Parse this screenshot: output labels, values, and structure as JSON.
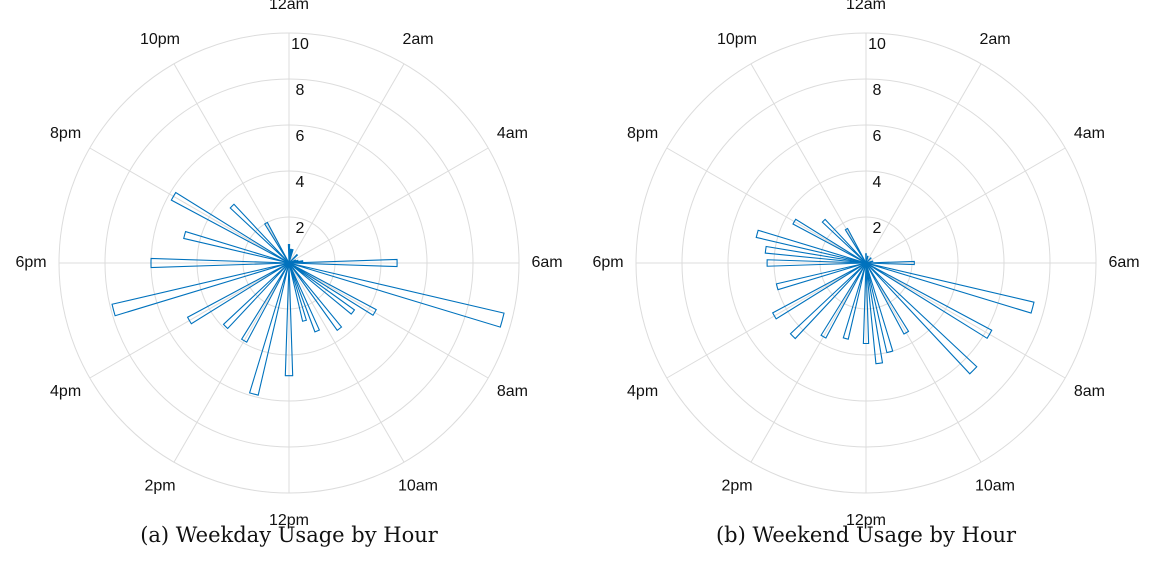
{
  "chart_data": [
    {
      "type": "polar-histogram",
      "caption": "(a) Weekday Usage by Hour",
      "title": "",
      "theta_zero": "top",
      "theta_direction": "clockwise",
      "theta_ticks": [
        {
          "hour": 0,
          "label": "12am"
        },
        {
          "hour": 2,
          "label": "2am"
        },
        {
          "hour": 4,
          "label": "4am"
        },
        {
          "hour": 6,
          "label": "6am"
        },
        {
          "hour": 8,
          "label": "8am"
        },
        {
          "hour": 10,
          "label": "10am"
        },
        {
          "hour": 12,
          "label": "12pm"
        },
        {
          "hour": 14,
          "label": "2pm"
        },
        {
          "hour": 16,
          "label": "4pm"
        },
        {
          "hour": 18,
          "label": "6pm"
        },
        {
          "hour": 20,
          "label": "8pm"
        },
        {
          "hour": 22,
          "label": "10pm"
        }
      ],
      "r_ticks": [
        2,
        4,
        6,
        8,
        10
      ],
      "r_tick_labels": [
        "2",
        "4",
        "6",
        "8",
        "10"
      ],
      "rlim": [
        0,
        10
      ],
      "grid": true,
      "bar_color": "#0072bd",
      "bars": [
        {
          "hour": 0.0,
          "value": 0.8
        },
        {
          "hour": 0.5,
          "value": 0.6
        },
        {
          "hour": 1.0,
          "value": 0.6
        },
        {
          "hour": 3.0,
          "value": 0.5
        },
        {
          "hour": 4.5,
          "value": 0.3
        },
        {
          "hour": 5.0,
          "value": 0.4
        },
        {
          "hour": 5.5,
          "value": 0.6
        },
        {
          "hour": 6.0,
          "value": 4.7
        },
        {
          "hour": 7.0,
          "value": 9.6
        },
        {
          "hour": 8.0,
          "value": 4.3
        },
        {
          "hour": 8.5,
          "value": 3.5
        },
        {
          "hour": 9.5,
          "value": 3.6
        },
        {
          "hour": 10.5,
          "value": 3.2
        },
        {
          "hour": 11.0,
          "value": 2.6
        },
        {
          "hour": 12.0,
          "value": 4.9
        },
        {
          "hour": 13.0,
          "value": 5.9
        },
        {
          "hour": 14.0,
          "value": 3.9
        },
        {
          "hour": 15.0,
          "value": 3.9
        },
        {
          "hour": 16.0,
          "value": 5.0
        },
        {
          "hour": 17.0,
          "value": 7.9
        },
        {
          "hour": 18.0,
          "value": 6.0
        },
        {
          "hour": 19.0,
          "value": 4.7
        },
        {
          "hour": 20.0,
          "value": 5.8
        },
        {
          "hour": 21.0,
          "value": 3.5
        },
        {
          "hour": 22.0,
          "value": 2.0
        }
      ]
    },
    {
      "type": "polar-histogram",
      "caption": "(b) Weekend Usage by Hour",
      "title": "",
      "theta_zero": "top",
      "theta_direction": "clockwise",
      "theta_ticks": [
        {
          "hour": 0,
          "label": "12am"
        },
        {
          "hour": 2,
          "label": "2am"
        },
        {
          "hour": 4,
          "label": "4am"
        },
        {
          "hour": 6,
          "label": "6am"
        },
        {
          "hour": 8,
          "label": "8am"
        },
        {
          "hour": 10,
          "label": "10am"
        },
        {
          "hour": 12,
          "label": "12pm"
        },
        {
          "hour": 14,
          "label": "2pm"
        },
        {
          "hour": 16,
          "label": "4pm"
        },
        {
          "hour": 18,
          "label": "6pm"
        },
        {
          "hour": 20,
          "label": "8pm"
        },
        {
          "hour": 22,
          "label": "10pm"
        }
      ],
      "r_ticks": [
        2,
        4,
        6,
        8,
        10
      ],
      "r_tick_labels": [
        "2",
        "4",
        "6",
        "8",
        "10"
      ],
      "rlim": [
        0,
        10
      ],
      "grid": true,
      "bar_color": "#0072bd",
      "bars": [
        {
          "hour": 0.0,
          "value": 0.4
        },
        {
          "hour": 1.0,
          "value": 0.3
        },
        {
          "hour": 3.0,
          "value": 0.3
        },
        {
          "hour": 5.0,
          "value": 0.3
        },
        {
          "hour": 6.0,
          "value": 2.1
        },
        {
          "hour": 7.0,
          "value": 7.5
        },
        {
          "hour": 8.0,
          "value": 6.2
        },
        {
          "hour": 9.0,
          "value": 6.6
        },
        {
          "hour": 10.0,
          "value": 3.5
        },
        {
          "hour": 11.0,
          "value": 4.0
        },
        {
          "hour": 11.5,
          "value": 4.4
        },
        {
          "hour": 12.0,
          "value": 3.5
        },
        {
          "hour": 13.0,
          "value": 3.4
        },
        {
          "hour": 14.0,
          "value": 3.7
        },
        {
          "hour": 15.0,
          "value": 4.5
        },
        {
          "hour": 16.0,
          "value": 4.6
        },
        {
          "hour": 17.0,
          "value": 4.0
        },
        {
          "hour": 18.0,
          "value": 4.3
        },
        {
          "hour": 18.5,
          "value": 4.4
        },
        {
          "hour": 19.0,
          "value": 4.9
        },
        {
          "hour": 20.0,
          "value": 3.6
        },
        {
          "hour": 21.0,
          "value": 2.6
        },
        {
          "hour": 22.0,
          "value": 1.7
        }
      ]
    }
  ]
}
